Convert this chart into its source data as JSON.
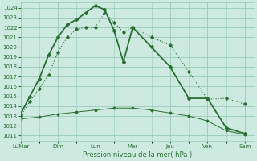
{
  "bg_color": "#cceae0",
  "grid_color": "#99ccbb",
  "line_color": "#2a6e35",
  "title": "Pression niveau de la mer( hPa )",
  "ylim": [
    1010.5,
    1024.5
  ],
  "yticks": [
    1011,
    1012,
    1013,
    1014,
    1015,
    1016,
    1017,
    1018,
    1019,
    1020,
    1021,
    1022,
    1023,
    1024
  ],
  "x_labels": [
    "LuMar",
    "Dim",
    "Lun",
    "Mer",
    "Jeu",
    "Ven",
    "Sam"
  ],
  "x_positions": [
    0,
    2,
    4,
    6,
    8,
    10,
    12
  ],
  "xlim": [
    0,
    12.5
  ],
  "series_dotted_x": [
    0,
    0.5,
    1,
    1.5,
    2,
    2.5,
    3,
    3.5,
    4,
    4.5,
    5,
    5.5,
    6,
    7,
    8,
    9,
    10,
    11,
    12
  ],
  "series_dotted_y": [
    1013.0,
    1014.5,
    1015.8,
    1017.2,
    1019.5,
    1021.0,
    1021.8,
    1022.0,
    1022.0,
    1023.5,
    1022.5,
    1021.5,
    1022.0,
    1021.0,
    1020.2,
    1017.5,
    1014.7,
    1014.8,
    1014.2
  ],
  "series_solid_x": [
    0,
    0.5,
    1,
    1.5,
    2,
    2.5,
    3,
    3.5,
    4,
    4.5,
    5,
    5.5,
    6,
    7,
    8,
    9,
    10,
    11,
    12
  ],
  "series_solid_y": [
    1013.2,
    1015.0,
    1016.8,
    1019.2,
    1021.0,
    1022.3,
    1022.8,
    1023.5,
    1024.2,
    1023.8,
    1021.7,
    1018.5,
    1022.0,
    1020.0,
    1018.0,
    1014.8,
    1014.8,
    1011.8,
    1011.2
  ],
  "series_flat_x": [
    0,
    1,
    2,
    3,
    4,
    5,
    6,
    7,
    8,
    9,
    10,
    11,
    12
  ],
  "series_flat_y": [
    1012.7,
    1012.9,
    1013.2,
    1013.4,
    1013.6,
    1013.8,
    1013.8,
    1013.6,
    1013.3,
    1013.0,
    1012.5,
    1011.5,
    1011.1
  ]
}
